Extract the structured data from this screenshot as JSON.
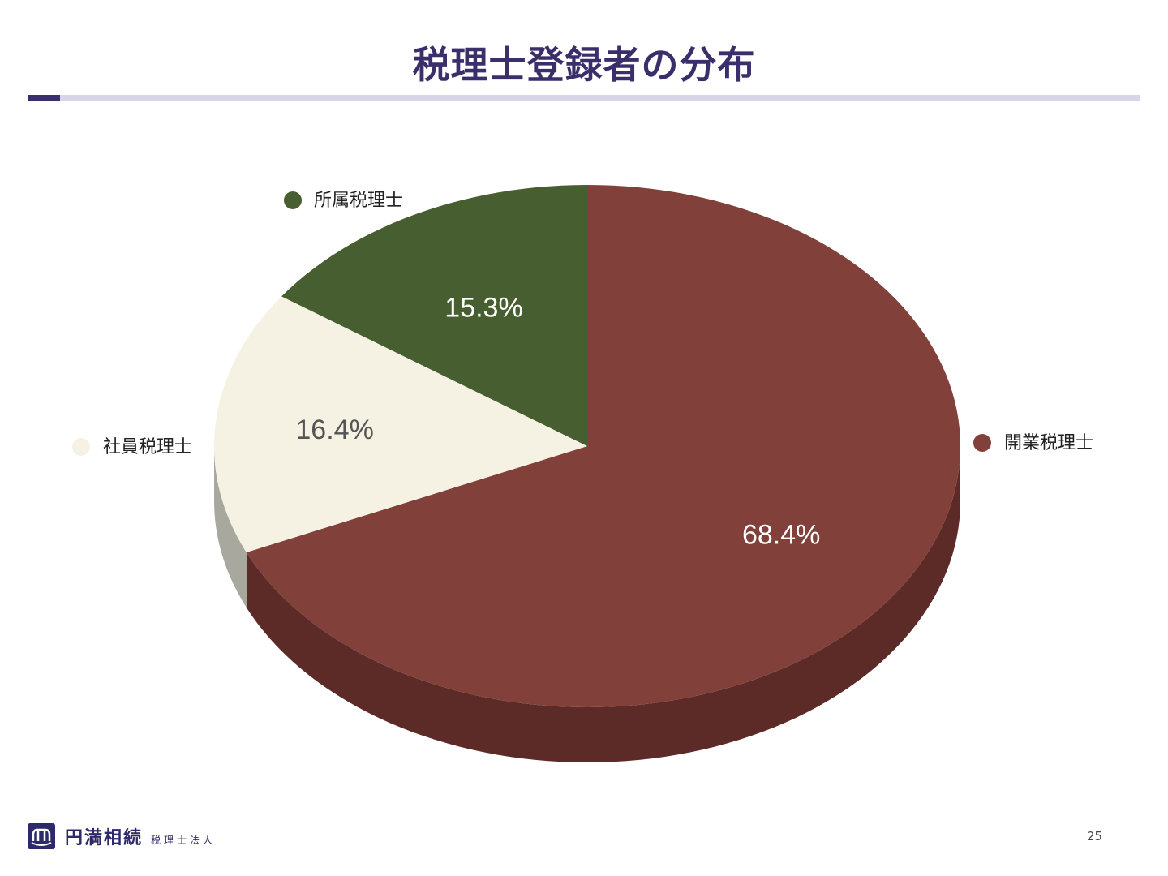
{
  "slide": {
    "title": "税理士登録者の分布",
    "page_number": "25"
  },
  "footer": {
    "logo_name": "円満相続",
    "logo_sub": "税理士法人"
  },
  "colors": {
    "title": "#3b2f6b",
    "accent": "#3b2f6b",
    "rule": "#d9d5e8"
  },
  "chart_data": {
    "type": "pie",
    "title": "",
    "start_angle_deg": 0,
    "direction": "clockwise",
    "legend_placement": "beside-slices",
    "series": [
      {
        "name": "",
        "slices": [
          {
            "label": "開業税理士",
            "value": 68.4,
            "display": "68.4%",
            "color": "#82403a",
            "side_color": "#5c2b27",
            "label_color": "#ffffff"
          },
          {
            "label": "社員税理士",
            "value": 16.4,
            "display": "16.4%",
            "color": "#f5f2e3",
            "side_color": "#a9a89e",
            "label_color": "#555555"
          },
          {
            "label": "所属税理士",
            "value": 15.3,
            "display": "15.3%",
            "color": "#475e30",
            "side_color": "#34451f",
            "label_color": "#ffffff"
          }
        ]
      }
    ]
  }
}
